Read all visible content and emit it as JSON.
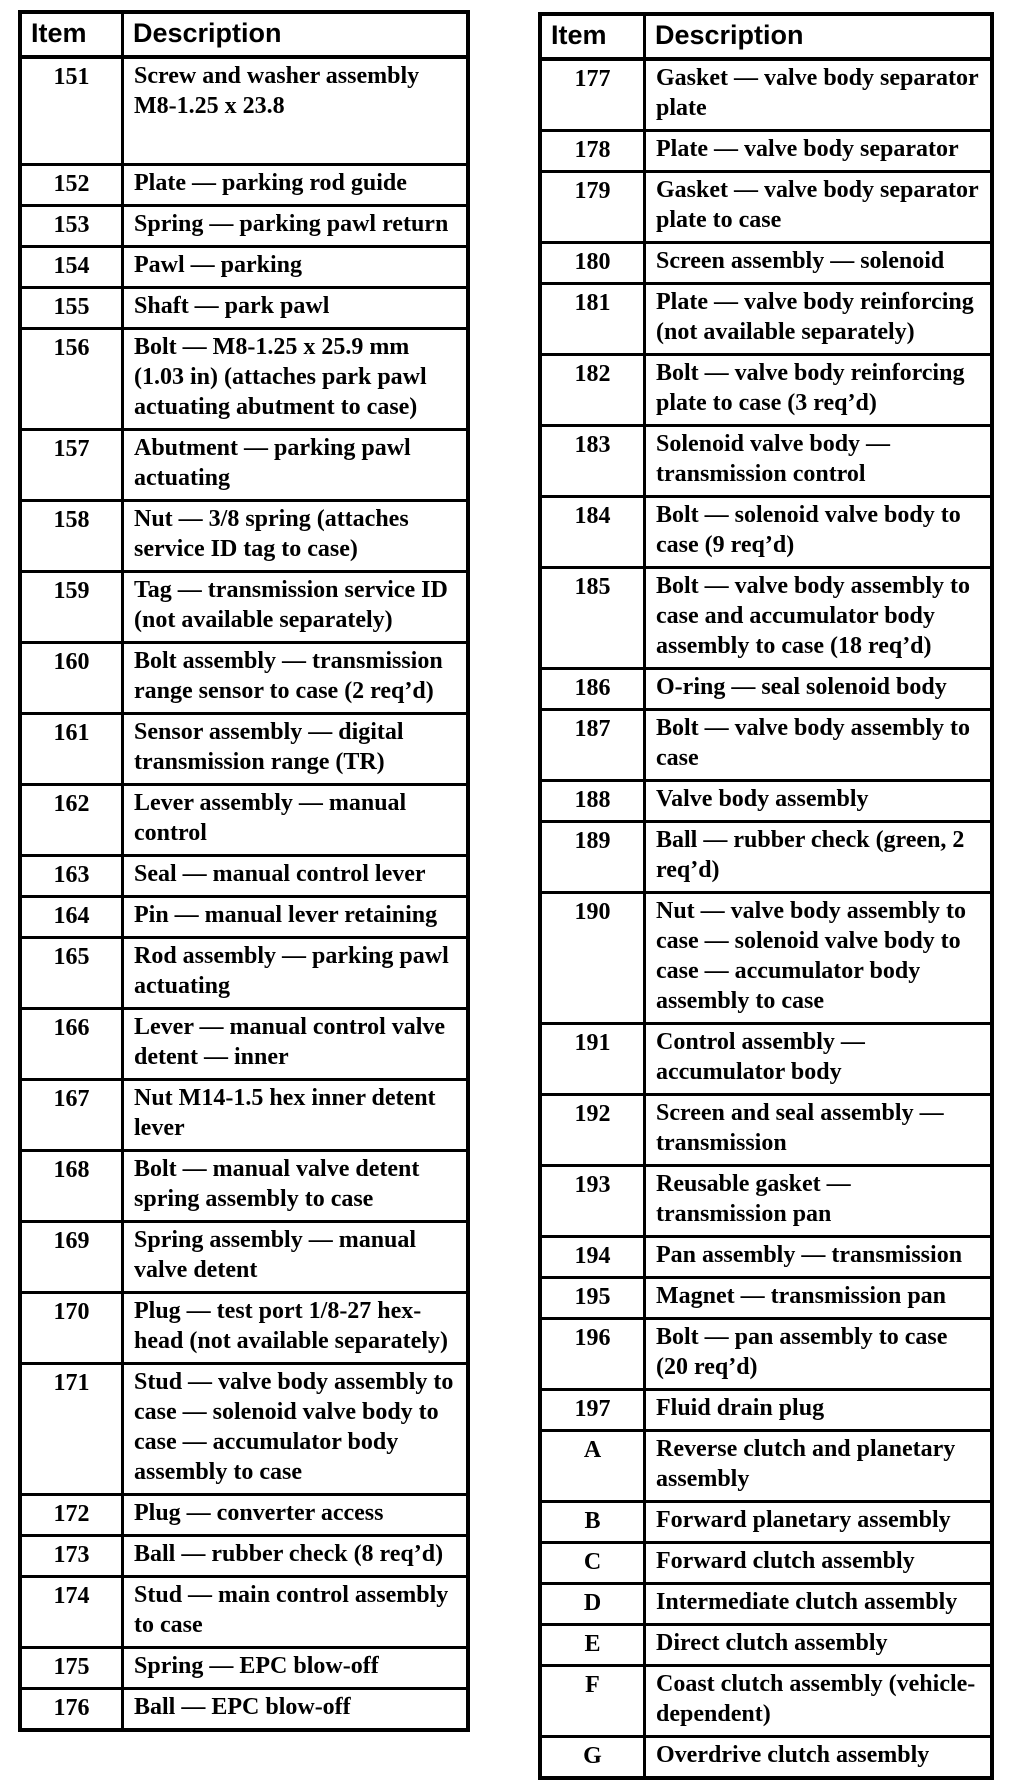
{
  "colors": {
    "text": "#000000",
    "background": "#ffffff",
    "border": "#000000"
  },
  "tables": [
    {
      "name": "parts-list-items-151-176",
      "headers": {
        "item": "Item",
        "description": "Description"
      },
      "rows": [
        {
          "item": "151",
          "description": "Screw and washer assembly M8-1.25 x 23.8",
          "tall": true
        },
        {
          "item": "152",
          "description": "Plate — parking rod guide"
        },
        {
          "item": "153",
          "description": "Spring — parking pawl return"
        },
        {
          "item": "154",
          "description": "Pawl — parking"
        },
        {
          "item": "155",
          "description": "Shaft — park pawl"
        },
        {
          "item": "156",
          "description": "Bolt — M8-1.25 x 25.9 mm (1.03 in) (attaches park pawl actuating abutment to case)"
        },
        {
          "item": "157",
          "description": "Abutment — parking pawl actuating"
        },
        {
          "item": "158",
          "description": "Nut — 3/8 spring (attaches service ID tag to case)"
        },
        {
          "item": "159",
          "description": "Tag — transmission service ID (not available separately)"
        },
        {
          "item": "160",
          "description": "Bolt assembly — transmission range sensor to case (2 req’d)"
        },
        {
          "item": "161",
          "description": "Sensor assembly — digital transmission range (TR)"
        },
        {
          "item": "162",
          "description": "Lever assembly — manual control"
        },
        {
          "item": "163",
          "description": "Seal — manual control lever"
        },
        {
          "item": "164",
          "description": "Pin — manual lever retaining"
        },
        {
          "item": "165",
          "description": "Rod assembly — parking pawl actuating"
        },
        {
          "item": "166",
          "description": "Lever — manual control valve detent — inner"
        },
        {
          "item": "167",
          "description": "Nut M14-1.5 hex inner detent lever"
        },
        {
          "item": "168",
          "description": "Bolt — manual valve detent spring assembly to case"
        },
        {
          "item": "169",
          "description": "Spring assembly — manual valve detent"
        },
        {
          "item": "170",
          "description": "Plug — test port 1/8-27 hex-head (not available separately)"
        },
        {
          "item": "171",
          "description": "Stud — valve body assembly to case — solenoid valve body to case — accumulator body assembly to case"
        },
        {
          "item": "172",
          "description": "Plug — converter access"
        },
        {
          "item": "173",
          "description": "Ball — rubber check (8 req’d)"
        },
        {
          "item": "174",
          "description": "Stud — main control assembly to case"
        },
        {
          "item": "175",
          "description": "Spring — EPC blow-off"
        },
        {
          "item": "176",
          "description": "Ball — EPC blow-off"
        }
      ]
    },
    {
      "name": "parts-list-items-177-197-and-letters",
      "headers": {
        "item": "Item",
        "description": "Description"
      },
      "rows": [
        {
          "item": "177",
          "description": "Gasket — valve body separator plate"
        },
        {
          "item": "178",
          "description": "Plate — valve body separator"
        },
        {
          "item": "179",
          "description": "Gasket — valve body separator plate to case"
        },
        {
          "item": "180",
          "description": "Screen assembly — solenoid"
        },
        {
          "item": "181",
          "description": "Plate — valve body reinforcing (not available separately)"
        },
        {
          "item": "182",
          "description": "Bolt — valve body reinforcing plate to case (3 req’d)"
        },
        {
          "item": "183",
          "description": "Solenoid valve body — transmission control"
        },
        {
          "item": "184",
          "description": "Bolt — solenoid valve body to case (9 req’d)"
        },
        {
          "item": "185",
          "description": "Bolt — valve body assembly to case and accumulator body assembly to case (18 req’d)"
        },
        {
          "item": "186",
          "description": "O-ring — seal solenoid body"
        },
        {
          "item": "187",
          "description": "Bolt — valve body assembly to case"
        },
        {
          "item": "188",
          "description": "Valve body assembly"
        },
        {
          "item": "189",
          "description": "Ball — rubber check (green, 2 req’d)"
        },
        {
          "item": "190",
          "description": "Nut — valve body assembly to case — solenoid valve body to case — accumulator body assembly to case"
        },
        {
          "item": "191",
          "description": "Control assembly — accumulator body"
        },
        {
          "item": "192",
          "description": "Screen and seal assembly — transmission"
        },
        {
          "item": "193",
          "description": "Reusable gasket — transmission pan"
        },
        {
          "item": "194",
          "description": "Pan assembly — transmission"
        },
        {
          "item": "195",
          "description": "Magnet — transmission pan"
        },
        {
          "item": "196",
          "description": "Bolt — pan assembly to case (20 req’d)"
        },
        {
          "item": "197",
          "description": "Fluid drain plug"
        },
        {
          "item": "A",
          "description": "Reverse clutch and planetary assembly"
        },
        {
          "item": "B",
          "description": "Forward planetary assembly"
        },
        {
          "item": "C",
          "description": "Forward clutch assembly"
        },
        {
          "item": "D",
          "description": "Intermediate clutch assembly"
        },
        {
          "item": "E",
          "description": "Direct clutch assembly"
        },
        {
          "item": "F",
          "description": "Coast clutch assembly (vehicle-dependent)"
        },
        {
          "item": "G",
          "description": "Overdrive clutch assembly"
        }
      ]
    }
  ]
}
